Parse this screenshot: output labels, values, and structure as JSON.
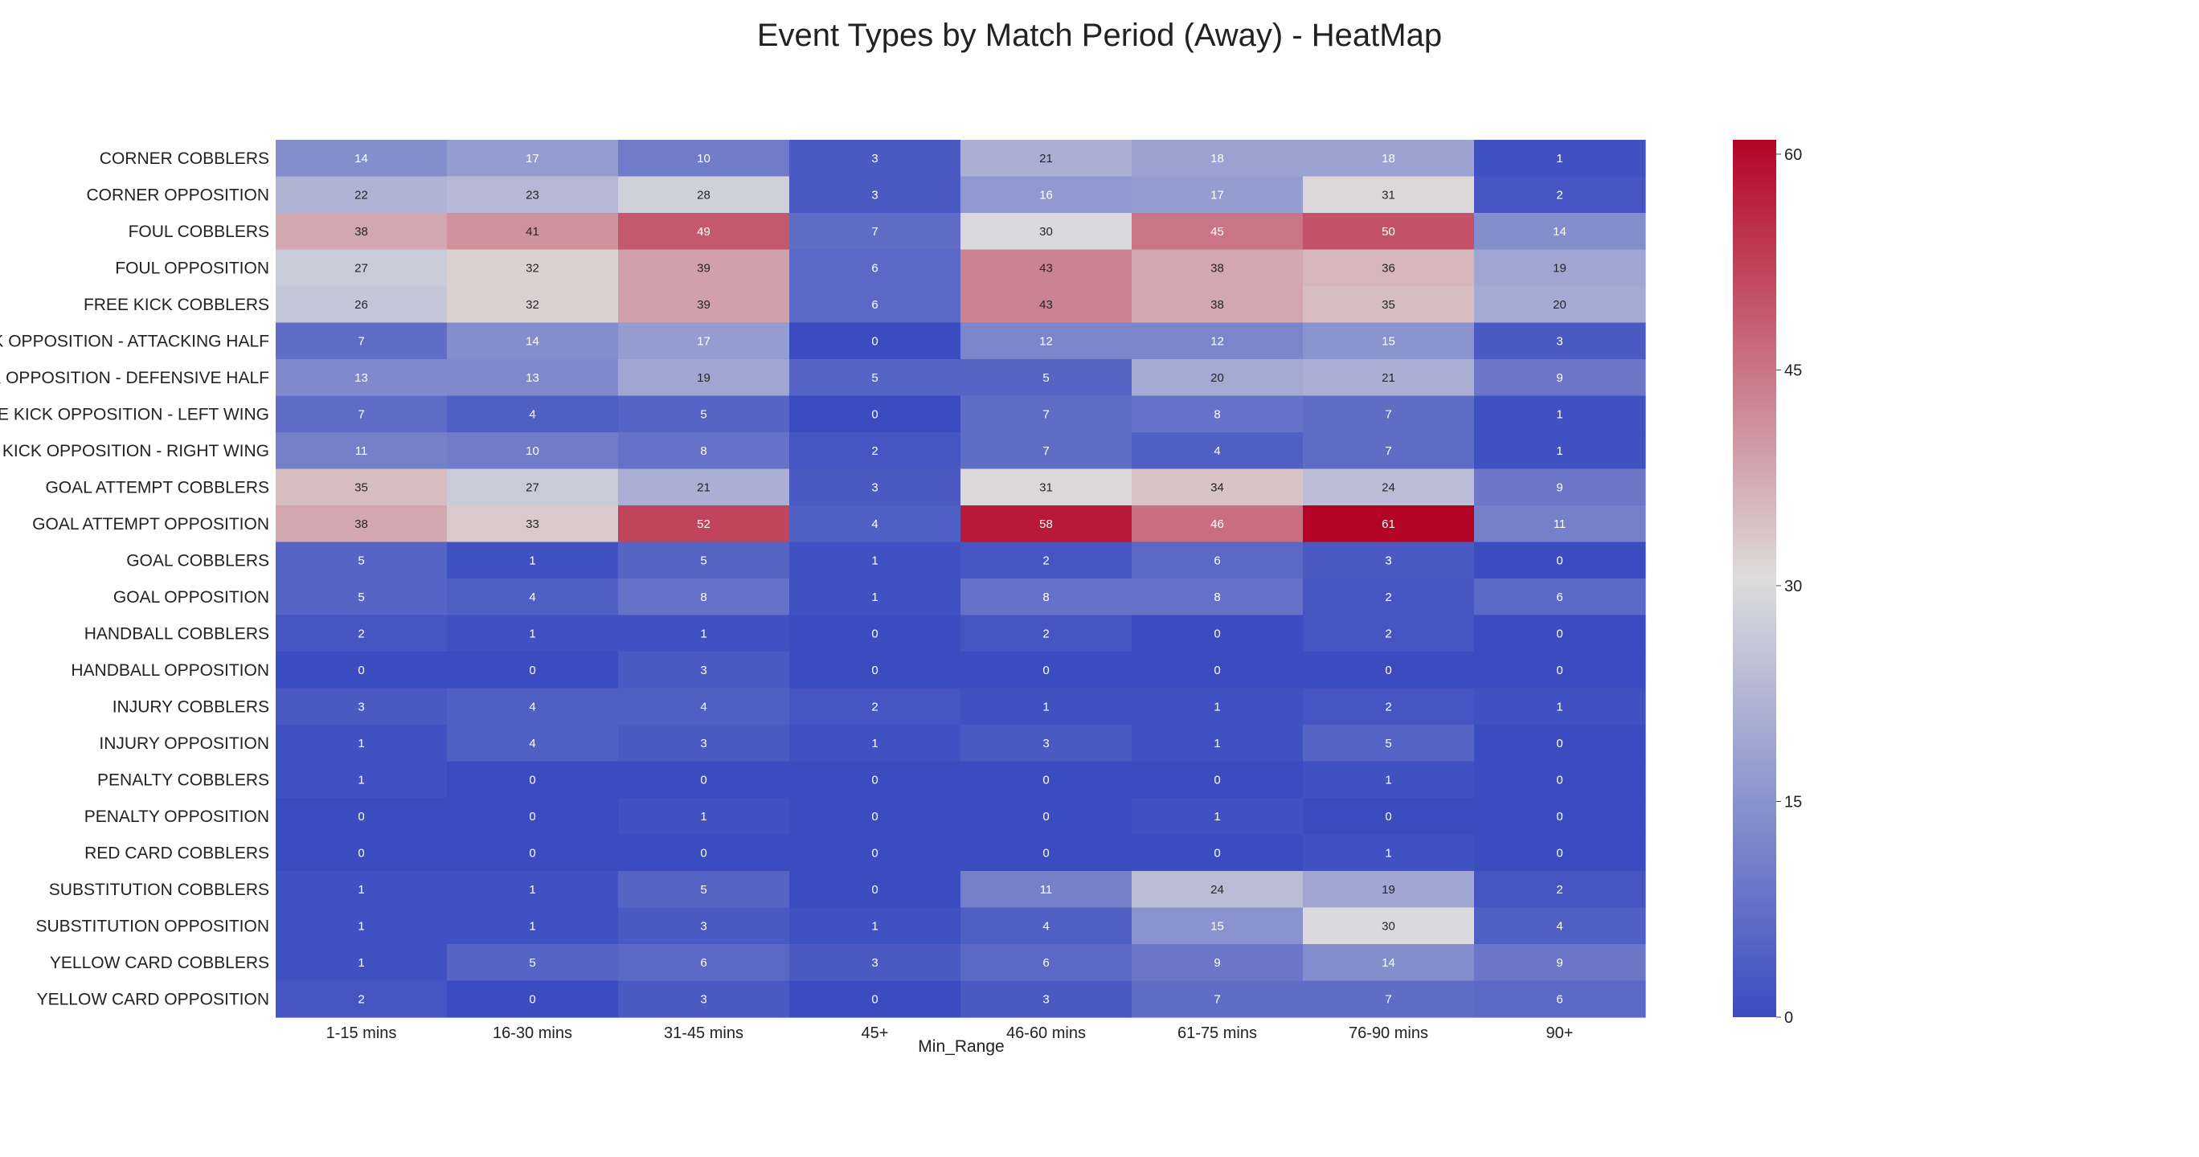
{
  "chart_data": {
    "type": "heatmap",
    "title": "Event Types by Match Period (Away) - HeatMap",
    "xlabel": "Min_Range",
    "ylabel": "",
    "columns": [
      "1-15 mins",
      "16-30 mins",
      "31-45 mins",
      "45+",
      "46-60 mins",
      "61-75 mins",
      "76-90 mins",
      "90+"
    ],
    "rows": [
      "CORNER COBBLERS",
      "CORNER OPPOSITION",
      "FOUL COBBLERS",
      "FOUL OPPOSITION",
      "FREE KICK COBBLERS",
      "CK OPPOSITION - ATTACKING HALF",
      "CK OPPOSITION - DEFENSIVE HALF",
      "EE KICK OPPOSITION - LEFT WING",
      "E KICK OPPOSITION - RIGHT WING",
      "GOAL ATTEMPT COBBLERS",
      "GOAL ATTEMPT OPPOSITION",
      "GOAL COBBLERS",
      "GOAL OPPOSITION",
      "HANDBALL COBBLERS",
      "HANDBALL OPPOSITION",
      "INJURY COBBLERS",
      "INJURY OPPOSITION",
      "PENALTY COBBLERS",
      "PENALTY OPPOSITION",
      "RED CARD COBBLERS",
      "SUBSTITUTION COBBLERS",
      "SUBSTITUTION OPPOSITION",
      "YELLOW CARD COBBLERS",
      "YELLOW CARD OPPOSITION"
    ],
    "values": [
      [
        14,
        17,
        10,
        3,
        21,
        18,
        18,
        1
      ],
      [
        22,
        23,
        28,
        3,
        16,
        17,
        31,
        2
      ],
      [
        38,
        41,
        49,
        7,
        30,
        45,
        50,
        14
      ],
      [
        27,
        32,
        39,
        6,
        43,
        38,
        36,
        19
      ],
      [
        26,
        32,
        39,
        6,
        43,
        38,
        35,
        20
      ],
      [
        7,
        14,
        17,
        0,
        12,
        12,
        15,
        3
      ],
      [
        13,
        13,
        19,
        5,
        5,
        20,
        21,
        9
      ],
      [
        7,
        4,
        5,
        0,
        7,
        8,
        7,
        1
      ],
      [
        11,
        10,
        8,
        2,
        7,
        4,
        7,
        1
      ],
      [
        35,
        27,
        21,
        3,
        31,
        34,
        24,
        9
      ],
      [
        38,
        33,
        52,
        4,
        58,
        46,
        61,
        11
      ],
      [
        5,
        1,
        5,
        1,
        2,
        6,
        3,
        0
      ],
      [
        5,
        4,
        8,
        1,
        8,
        8,
        2,
        6
      ],
      [
        2,
        1,
        1,
        0,
        2,
        0,
        2,
        0
      ],
      [
        0,
        0,
        3,
        0,
        0,
        0,
        0,
        0
      ],
      [
        3,
        4,
        4,
        2,
        1,
        1,
        2,
        1
      ],
      [
        1,
        4,
        3,
        1,
        3,
        1,
        5,
        0
      ],
      [
        1,
        0,
        0,
        0,
        0,
        0,
        1,
        0
      ],
      [
        0,
        0,
        1,
        0,
        0,
        1,
        0,
        0
      ],
      [
        0,
        0,
        0,
        0,
        0,
        0,
        1,
        0
      ],
      [
        1,
        1,
        5,
        0,
        11,
        24,
        19,
        2
      ],
      [
        1,
        1,
        3,
        1,
        4,
        15,
        30,
        4
      ],
      [
        1,
        5,
        6,
        3,
        6,
        9,
        14,
        9
      ],
      [
        2,
        0,
        3,
        0,
        3,
        7,
        7,
        6
      ]
    ],
    "colorscale": "coolwarm",
    "colorscale_low": "#3b4cc0",
    "colorscale_mid": "#dddcdc",
    "colorscale_high": "#b40426",
    "zmin": 0,
    "zmax": 61,
    "colorbar_ticks": [
      "0",
      "15",
      "30",
      "45",
      "60"
    ],
    "colorbar_tick_values": [
      0,
      15,
      30,
      45,
      60
    ],
    "legend": "right",
    "grid": false
  }
}
